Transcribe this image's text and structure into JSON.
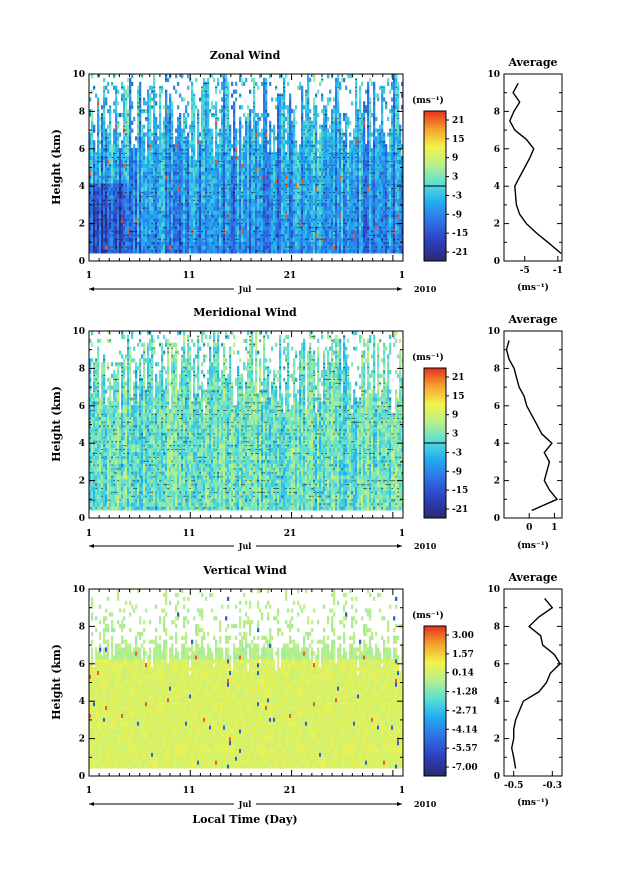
{
  "chart_data": [
    {
      "type": "heatmap",
      "title": "Zonal Wind",
      "ylabel": "Height (km)",
      "ylim": [
        0,
        10
      ],
      "yticks": [
        "0",
        "2",
        "4",
        "6",
        "8",
        "10"
      ],
      "xticks": [
        "1",
        "11",
        "21",
        "1"
      ],
      "month_label": "Jul",
      "year_label": "2010",
      "colorbar": {
        "unit": "(ms⁻¹)",
        "range": [
          -21,
          21
        ],
        "tick_labels": [
          "21",
          "15",
          "9",
          "3",
          "-3",
          "-9",
          "-15",
          "-21"
        ]
      },
      "average": {
        "title": "Average",
        "xlabel": "(ms⁻¹)",
        "xticks": [
          "-5",
          "-1"
        ],
        "xlim": [
          -7.5,
          -0.5
        ],
        "heights_km": [
          0.4,
          1,
          1.5,
          2,
          2.5,
          3,
          3.5,
          4,
          4.5,
          5,
          5.5,
          6,
          6.5,
          7,
          7.5,
          8,
          8.5,
          9,
          9.5
        ],
        "values": [
          -0.6,
          -2.2,
          -3.6,
          -4.8,
          -5.6,
          -6.0,
          -6.1,
          -6.2,
          -5.6,
          -5.0,
          -4.4,
          -3.9,
          -4.8,
          -6.2,
          -6.8,
          -6.3,
          -5.6,
          -6.4,
          -5.8
        ]
      }
    },
    {
      "type": "heatmap",
      "title": "Meridional Wind",
      "ylabel": "Height (km)",
      "ylim": [
        0,
        10
      ],
      "yticks": [
        "0",
        "2",
        "4",
        "6",
        "8",
        "10"
      ],
      "xticks": [
        "1",
        "11",
        "21",
        "1"
      ],
      "month_label": "Jul",
      "year_label": "2010",
      "colorbar": {
        "unit": "(ms⁻¹)",
        "range": [
          -21,
          21
        ],
        "tick_labels": [
          "21",
          "15",
          "9",
          "3",
          "-3",
          "-9",
          "-15",
          "-21"
        ]
      },
      "average": {
        "title": "Average",
        "xlabel": "(ms⁻¹)",
        "xticks": [
          "0",
          "1"
        ],
        "xlim": [
          -1.0,
          1.3
        ],
        "heights_km": [
          0.4,
          1,
          1.5,
          2,
          2.5,
          3,
          3.5,
          4,
          4.5,
          5,
          5.5,
          6,
          6.5,
          7,
          7.5,
          8,
          8.5,
          9,
          9.5
        ],
        "values": [
          0.1,
          1.1,
          0.8,
          0.6,
          0.7,
          0.8,
          0.6,
          0.9,
          0.5,
          0.3,
          0.1,
          -0.1,
          -0.2,
          -0.4,
          -0.5,
          -0.6,
          -0.8,
          -0.9,
          -0.8
        ]
      }
    },
    {
      "type": "heatmap",
      "title": "Vertical Wind",
      "ylabel": "Height (km)",
      "xlabel": "Local Time (Day)",
      "ylim": [
        0,
        10
      ],
      "yticks": [
        "0",
        "2",
        "4",
        "6",
        "8",
        "10"
      ],
      "xticks": [
        "1",
        "11",
        "21",
        "1"
      ],
      "month_label": "Jul",
      "year_label": "2010",
      "colorbar": {
        "unit": "(ms⁻¹)",
        "range": [
          -7.0,
          3.0
        ],
        "tick_labels": [
          "3.00",
          "1.57",
          "0.14",
          "-1.28",
          "-2.71",
          "-4.14",
          "-5.57",
          "-7.00"
        ]
      },
      "average": {
        "title": "Average",
        "xlabel": "(ms⁻¹)",
        "xticks": [
          "-0.5",
          "-0.3"
        ],
        "xlim": [
          -0.55,
          -0.25
        ],
        "heights_km": [
          0.4,
          1,
          1.5,
          2,
          2.5,
          3,
          3.5,
          4,
          4.5,
          5,
          5.5,
          6,
          6.5,
          7,
          7.5,
          8,
          8.5,
          9,
          9.5
        ],
        "values": [
          -0.49,
          -0.5,
          -0.51,
          -0.5,
          -0.5,
          -0.49,
          -0.47,
          -0.45,
          -0.37,
          -0.33,
          -0.31,
          -0.26,
          -0.29,
          -0.35,
          -0.36,
          -0.42,
          -0.37,
          -0.3,
          -0.34
        ]
      }
    }
  ],
  "colors": {
    "colormap": [
      "#2a2a6e",
      "#2d3fbf",
      "#2f73e8",
      "#22b0f0",
      "#5fe0d4",
      "#b8f08a",
      "#f2f24a",
      "#f5a12e",
      "#e6301e"
    ]
  }
}
